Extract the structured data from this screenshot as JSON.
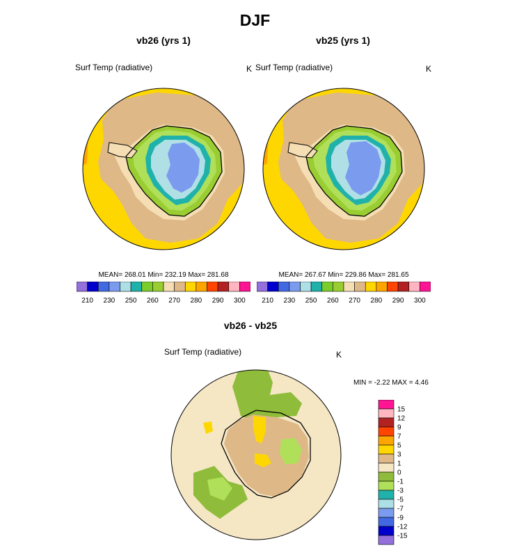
{
  "figure": {
    "title": "DJF",
    "diff_title": "vb26 - vb25"
  },
  "palette": {
    "full": [
      "#9370db",
      "#0000cd",
      "#4169e1",
      "#7b9bef",
      "#addfe6",
      "#20b2aa",
      "#7ccd2b",
      "#9acd32",
      "#f5deb3",
      "#deb887",
      "#ffd700",
      "#ffa500",
      "#ff4500",
      "#b22222",
      "#ffb6c1",
      "#ff1493"
    ],
    "sea_ice": "#deb887",
    "ocean_warm": "#ffd700",
    "ocean_hot": "#ffa500",
    "diff_bg": "#f5e6c4",
    "diff_green": "#8fbc3a",
    "diff_lightgreen": "#b0e05a",
    "diff_tan": "#deb887",
    "diff_yellow": "#ffd700",
    "ice_lightblue": "#b0e0e6",
    "ice_blue": "#7b9bef",
    "ice_teal": "#20b2aa",
    "land_green": "#9acd32",
    "land_lightgreen": "#b0e05a"
  },
  "chart_data": [
    {
      "type": "heatmap",
      "title": "vb26 (yrs 1)",
      "variable": "Surf Temp (radiative)",
      "units": "K",
      "stats_label": "MEAN= 268.01  Min= 232.19  Max= 281.68",
      "mean": 268.01,
      "min": 232.19,
      "max": 281.68,
      "colorbar_ticks": [
        "210",
        "230",
        "250",
        "260",
        "270",
        "280",
        "290",
        "300"
      ]
    },
    {
      "type": "heatmap",
      "title": "vb25 (yrs 1)",
      "variable": "Surf Temp (radiative)",
      "units": "K",
      "stats_label": "MEAN= 267.67  Min= 229.86  Max= 281.65",
      "mean": 267.67,
      "min": 229.86,
      "max": 281.65,
      "colorbar_ticks": [
        "210",
        "230",
        "250",
        "260",
        "270",
        "280",
        "290",
        "300"
      ]
    },
    {
      "type": "heatmap",
      "title": "vb26 - vb25",
      "variable": "Surf Temp (radiative)",
      "units": "K",
      "stats_label": "MIN =  -2.22 MAX =   4.46",
      "min": -2.22,
      "max": 4.46,
      "colorbar_labels": [
        "15",
        "12",
        "9",
        "7",
        "5",
        "3",
        "1",
        "0",
        "-1",
        "-3",
        "-5",
        "-7",
        "-9",
        "-12",
        "-15"
      ],
      "colorbar_colors": [
        "#ff1493",
        "#ffb6c1",
        "#b22222",
        "#ff4500",
        "#ffa500",
        "#ffd700",
        "#deb887",
        "#f5e6c4",
        "#8fbc3a",
        "#b0e05a",
        "#20b2aa",
        "#addfe6",
        "#7b9bef",
        "#4169e1",
        "#0000cd",
        "#9370db"
      ]
    }
  ]
}
